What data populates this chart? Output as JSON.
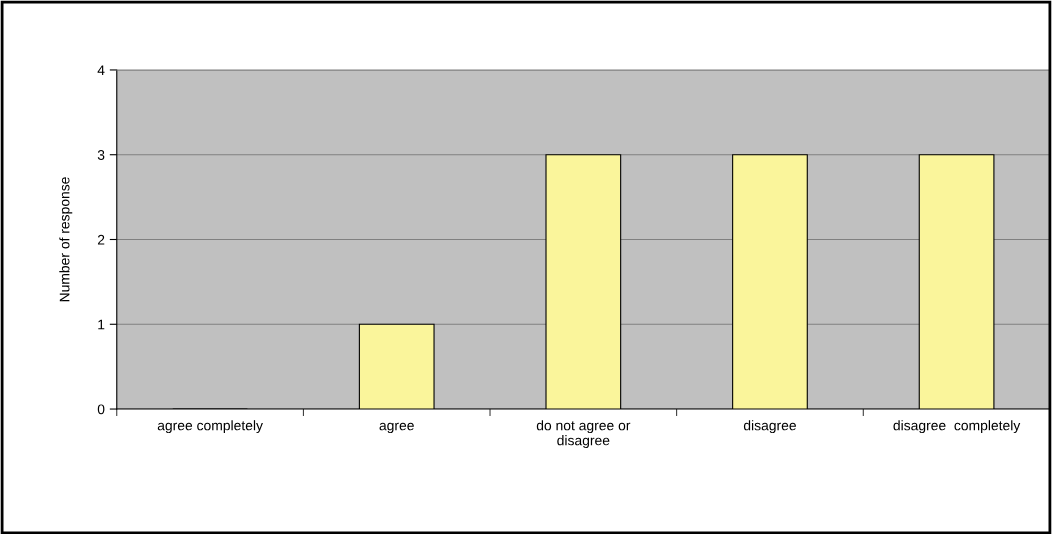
{
  "chart_data": {
    "type": "bar",
    "ylabel": "Number of response",
    "categories": [
      "agree completely",
      "agree",
      "do not agree or\ndisagree",
      "disagree",
      "disagree  completely"
    ],
    "values": [
      0,
      1,
      3,
      3,
      3
    ],
    "color": "#faf59b",
    "ylim": [
      0,
      4
    ],
    "yticks": [
      0,
      1,
      2,
      3,
      4
    ],
    "grid": "y"
  }
}
